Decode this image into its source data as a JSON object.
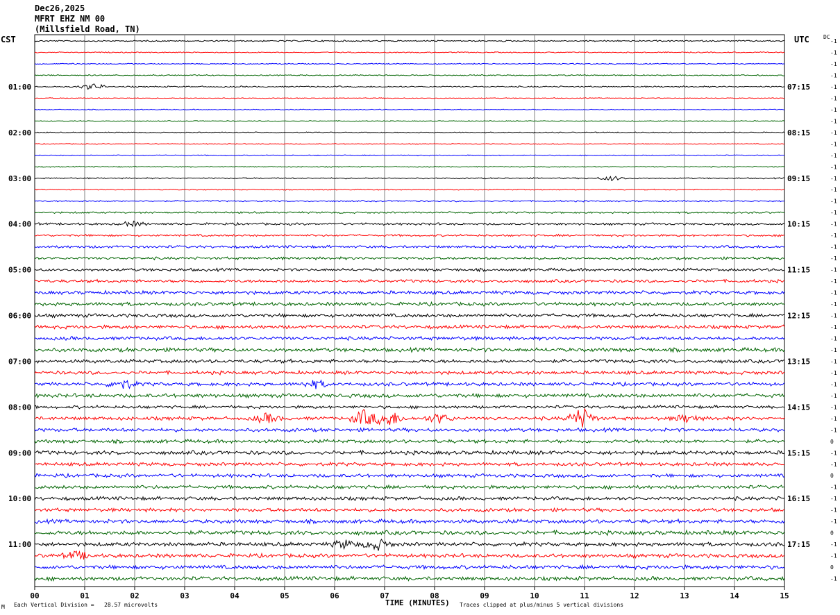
{
  "header": {
    "date": "Dec26,2025",
    "station": "MFRT EHZ NM 00",
    "location": "(Millsfield Road, TN)"
  },
  "timezones": {
    "left": "CST",
    "right": "UTC"
  },
  "dc_label": "DC",
  "footer": {
    "division": "Each Vertical Division =   28.57 microvolts",
    "clipped": "Traces clipped at plus/minus 5 vertical divisions",
    "mark": "M"
  },
  "chart_data": {
    "type": "line",
    "title": "",
    "xlabel": "TIME (MINUTES)",
    "ylabel": "",
    "xlim": [
      0,
      15
    ],
    "x_ticks": [
      "00",
      "01",
      "02",
      "03",
      "04",
      "05",
      "06",
      "07",
      "08",
      "09",
      "10",
      "11",
      "12",
      "13",
      "14",
      "15"
    ],
    "trace_colors": [
      "#000000",
      "#ff0000",
      "#0000ff",
      "#006400"
    ],
    "grid": true,
    "left_hour_labels": [
      "01:00",
      "02:00",
      "03:00",
      "04:00",
      "05:00",
      "06:00",
      "07:00",
      "08:00",
      "09:00",
      "10:00",
      "11:00"
    ],
    "right_hour_labels": [
      "07:15",
      "08:15",
      "09:15",
      "10:15",
      "11:15",
      "12:15",
      "13:15",
      "14:15",
      "15:15",
      "16:15",
      "17:15"
    ],
    "dc_offsets": [
      -1,
      -1,
      -1,
      -1,
      -1,
      -1,
      -1,
      -1,
      -1,
      -1,
      -1,
      -1,
      -1,
      -1,
      -1,
      -1,
      -1,
      -1,
      -1,
      -1,
      -1,
      -1,
      -1,
      -1,
      -1,
      -1,
      -1,
      -1,
      -1,
      -1,
      -1,
      -1,
      -1,
      -1,
      -1,
      0,
      -1,
      -1,
      0,
      -1,
      -1,
      -1,
      -1,
      0,
      -1,
      -1,
      0,
      -1
    ],
    "trace_amplitudes": [
      0.8,
      0.6,
      0.6,
      0.7,
      0.8,
      0.5,
      0.5,
      0.5,
      0.6,
      0.5,
      0.6,
      0.6,
      0.7,
      0.6,
      0.8,
      1.0,
      1.3,
      1.2,
      1.5,
      1.5,
      1.6,
      1.7,
      2.0,
      2.0,
      2.0,
      2.0,
      2.0,
      2.2,
      2.0,
      2.0,
      2.0,
      2.2,
      1.7,
      2.0,
      2.0,
      2.0,
      2.2,
      2.0,
      2.0,
      2.0,
      2.0,
      2.0,
      2.2,
      2.4,
      2.2,
      2.2,
      2.2,
      2.2
    ],
    "events": [
      {
        "trace": 4,
        "minute": 1.15,
        "amp": 4
      },
      {
        "trace": 12,
        "minute": 11.55,
        "amp": 3
      },
      {
        "trace": 16,
        "minute": 1.95,
        "amp": 3
      },
      {
        "trace": 30,
        "minute": 1.75,
        "amp": 6
      },
      {
        "trace": 30,
        "minute": 5.6,
        "amp": 5
      },
      {
        "trace": 33,
        "minute": 4.65,
        "amp": 6
      },
      {
        "trace": 33,
        "minute": 6.6,
        "amp": 11
      },
      {
        "trace": 33,
        "minute": 7.1,
        "amp": 10
      },
      {
        "trace": 33,
        "minute": 8.1,
        "amp": 6
      },
      {
        "trace": 33,
        "minute": 10.95,
        "amp": 14
      },
      {
        "trace": 33,
        "minute": 13.05,
        "amp": 5
      },
      {
        "trace": 44,
        "minute": 6.2,
        "amp": 5
      },
      {
        "trace": 44,
        "minute": 6.85,
        "amp": 7
      },
      {
        "trace": 45,
        "minute": 0.85,
        "amp": 5
      }
    ]
  }
}
